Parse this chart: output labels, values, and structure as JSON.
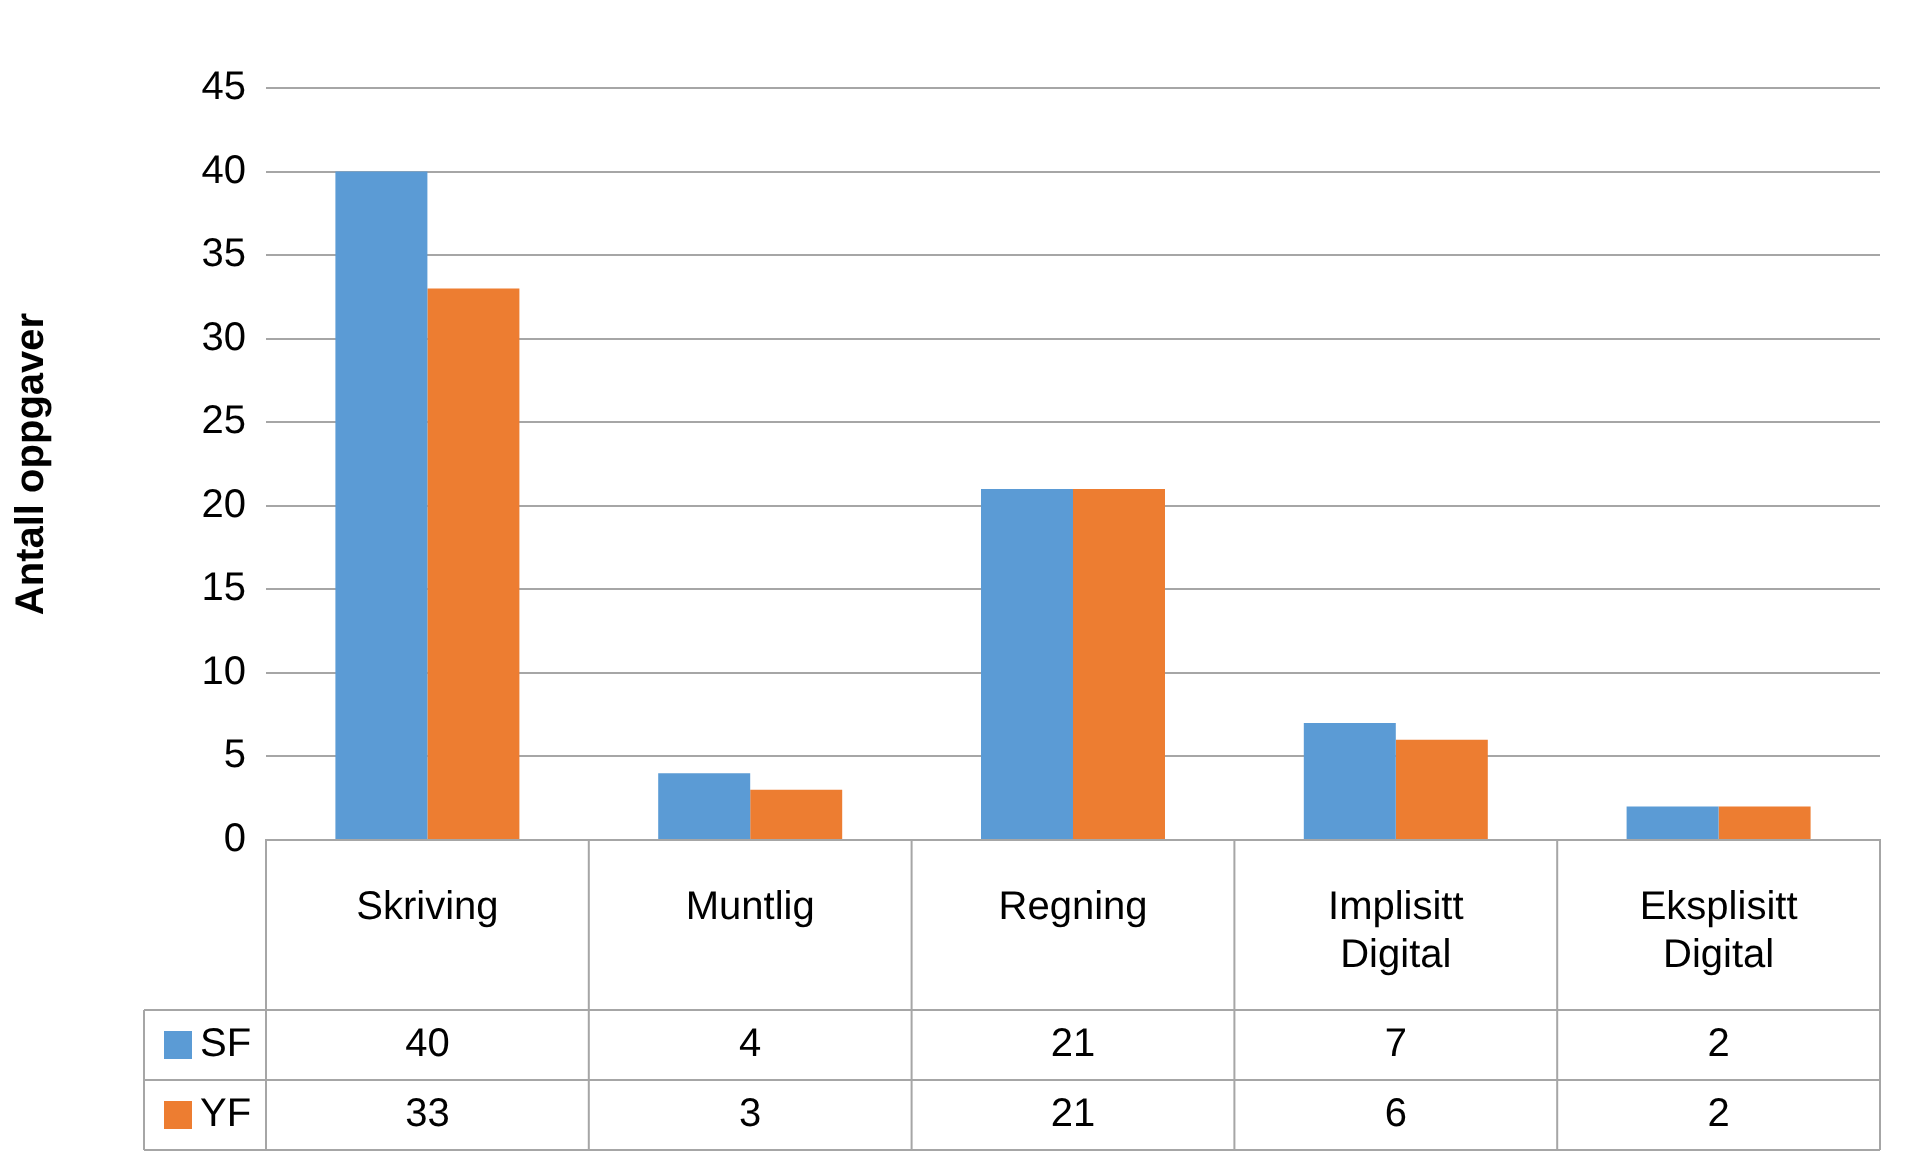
{
  "chart_data": {
    "type": "bar",
    "ylabel": "Antall oppgaver",
    "categories": [
      "Skriving",
      "Muntlig",
      "Regning",
      "Implisitt Digital",
      "Eksplisitt Digital"
    ],
    "series": [
      {
        "name": "SF",
        "color": "#5b9bd5",
        "values": [
          40,
          4,
          21,
          7,
          2
        ]
      },
      {
        "name": "YF",
        "color": "#ed7d31",
        "values": [
          33,
          3,
          21,
          6,
          2
        ]
      }
    ],
    "ylim": [
      0,
      45
    ],
    "yticks": [
      0,
      5,
      10,
      15,
      20,
      25,
      30,
      35,
      40,
      45
    ],
    "grid": "y",
    "legend": "bottom",
    "data_labels": true
  }
}
